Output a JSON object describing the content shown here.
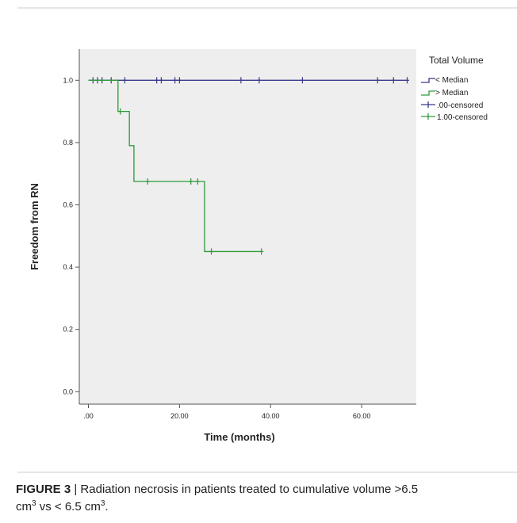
{
  "chart_data": {
    "type": "line",
    "subtype": "kaplan-meier-step",
    "xlabel": "Time (months)",
    "ylabel": "Freedom from RN",
    "xlim": [
      -2,
      72
    ],
    "ylim": [
      -0.04,
      1.1
    ],
    "x_ticks": [
      0,
      20,
      40,
      60
    ],
    "x_tick_labels": [
      ".00",
      "20.00",
      "40.00",
      "60.00"
    ],
    "y_ticks": [
      0.0,
      0.2,
      0.4,
      0.6,
      0.8,
      1.0
    ],
    "y_tick_labels": [
      "0.0",
      "0.2",
      "0.4",
      "0.6",
      "0.8",
      "1.0"
    ],
    "grid": false,
    "plot_background": "#eeeeee",
    "legend_placement": "right",
    "legend_title": "Total Volume",
    "legend_entries": [
      "< Median",
      "> Median",
      ".00-censored",
      "1.00-censored"
    ],
    "series": [
      {
        "name": "< Median",
        "color": "#3a3a8c",
        "step_x": [
          0,
          70
        ],
        "step_y": [
          1.0,
          1.0
        ],
        "censored_x": [
          1,
          2,
          3,
          5,
          8,
          15,
          16,
          19,
          20,
          33.5,
          37.5,
          47,
          63.5,
          67,
          70
        ],
        "censored_y": [
          1.0,
          1.0,
          1.0,
          1.0,
          1.0,
          1.0,
          1.0,
          1.0,
          1.0,
          1.0,
          1.0,
          1.0,
          1.0,
          1.0,
          1.0
        ]
      },
      {
        "name": "> Median",
        "color": "#2e9a3a",
        "step_x": [
          0,
          6.5,
          9,
          10,
          25.5,
          38
        ],
        "step_y": [
          1.0,
          0.9,
          0.79,
          0.675,
          0.45,
          0.45
        ],
        "censored_x": [
          7,
          13,
          22.5,
          24,
          27,
          38
        ],
        "censored_y": [
          0.9,
          0.675,
          0.675,
          0.675,
          0.45,
          0.45
        ]
      }
    ]
  },
  "caption": {
    "label": "FIGURE 3",
    "separator": " | ",
    "text_part1": "Radiation necrosis in patients treated to cumulative volume >6.5",
    "unit1": "cm",
    "exp1": "3",
    "text_part2": " vs < 6.5 ",
    "unit2": "cm",
    "exp2": "3",
    "end": "."
  }
}
